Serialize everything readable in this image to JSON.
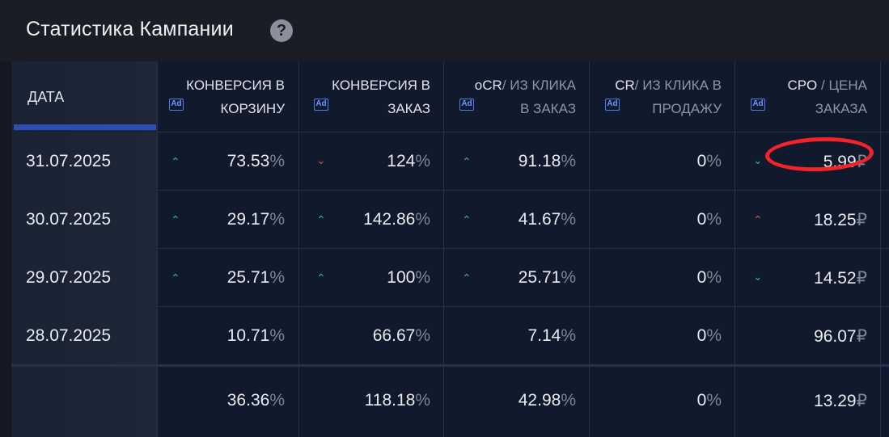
{
  "header": {
    "title": "Статистика Кампании",
    "help_glyph": "?"
  },
  "columns": {
    "date": "ДАТА",
    "c1": {
      "line1": "КОНВЕРСИЯ В",
      "line2": "КОРЗИНУ"
    },
    "c2": {
      "line1": "КОНВЕРСИЯ В",
      "line2": "ЗАКАЗ"
    },
    "c3": {
      "main": "oCR",
      "dim1": "/ ИЗ КЛИКА",
      "dim2": "В ЗАКАЗ"
    },
    "c4": {
      "main": "CR",
      "dim1": "/ ИЗ КЛИКА В",
      "dim2": "ПРОДАЖУ"
    },
    "c5": {
      "main": "CPO",
      "dim1": "/ ЦЕНА",
      "dim2": "ЗАКАЗА"
    },
    "ad_badge": "Ad"
  },
  "rows": [
    {
      "date": "31.07.2025",
      "v1": "73.53",
      "t1": "up",
      "v2": "124",
      "t2": "down",
      "v3": "91.18",
      "t3": "up",
      "v4": "0",
      "v5": "5.99",
      "t5": "down-green"
    },
    {
      "date": "30.07.2025",
      "v1": "29.17",
      "t1": "up",
      "v2": "142.86",
      "t2": "up",
      "v3": "41.67",
      "t3": "up",
      "v4": "0",
      "v5": "18.25",
      "t5": "up-red"
    },
    {
      "date": "29.07.2025",
      "v1": "25.71",
      "t1": "up",
      "v2": "100",
      "t2": "up",
      "v3": "25.71",
      "t3": "up",
      "v4": "0",
      "v5": "14.52",
      "t5": "down-green"
    },
    {
      "date": "28.07.2025",
      "v1": "10.71",
      "v2": "66.67",
      "v3": "7.14",
      "v4": "0",
      "v5": "96.07"
    }
  ],
  "totals": {
    "v1": "36.36",
    "v2": "118.18",
    "v3": "42.98",
    "v4": "0",
    "v5": "13.29"
  },
  "units": {
    "percent": "%",
    "ruble": "₽"
  },
  "colors": {
    "trend_up": "#3fb56a",
    "trend_down": "#e04848",
    "annotation": "#f2242a",
    "accent": "#2d4fb3"
  },
  "icons": {
    "up": "chevron-up-icon",
    "down": "chevron-down-icon",
    "help": "question-circle-icon"
  }
}
